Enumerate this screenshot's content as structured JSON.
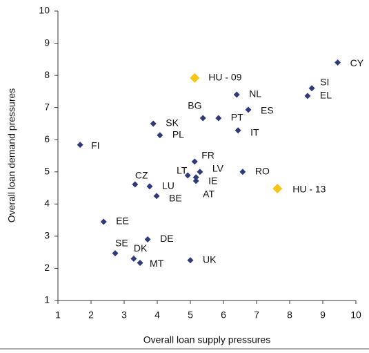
{
  "chart_data": {
    "type": "scatter",
    "x_label": "Overall loan supply pressures",
    "y_label": "Overall loan demand pressures",
    "xlim": [
      1,
      10
    ],
    "xticks": [
      1,
      2,
      3,
      4,
      5,
      6,
      7,
      8,
      9,
      10
    ],
    "ylim": [
      1,
      10
    ],
    "yticks": [
      1,
      2,
      3,
      4,
      5,
      6,
      7,
      8,
      9,
      10
    ],
    "points": [
      {
        "label": "CY",
        "x": 9.45,
        "y": 8.4,
        "color": "#2e3a7a"
      },
      {
        "label": "SI",
        "x": 8.67,
        "y": 7.6,
        "color": "#2e3a7a"
      },
      {
        "label": "EL",
        "x": 8.54,
        "y": 7.36,
        "color": "#2e3a7a"
      },
      {
        "label": "NL",
        "x": 6.4,
        "y": 7.4,
        "color": "#2e3a7a"
      },
      {
        "label": "HU - 09",
        "x": 5.13,
        "y": 7.92,
        "color": "#f5c518"
      },
      {
        "label": "ES",
        "x": 6.75,
        "y": 6.93,
        "color": "#2e3a7a"
      },
      {
        "label": "BG",
        "x": 5.38,
        "y": 6.67,
        "color": "#2e3a7a"
      },
      {
        "label": "PT",
        "x": 5.85,
        "y": 6.67,
        "color": "#2e3a7a"
      },
      {
        "label": "SK",
        "x": 3.88,
        "y": 6.5,
        "color": "#2e3a7a"
      },
      {
        "label": "IT",
        "x": 6.44,
        "y": 6.29,
        "color": "#2e3a7a"
      },
      {
        "label": "PL",
        "x": 4.08,
        "y": 6.14,
        "color": "#2e3a7a"
      },
      {
        "label": "FI",
        "x": 1.67,
        "y": 5.84,
        "color": "#2e3a7a"
      },
      {
        "label": "FR",
        "x": 5.13,
        "y": 5.32,
        "color": "#2e3a7a"
      },
      {
        "label": "LV",
        "x": 5.29,
        "y": 5.0,
        "color": "#2e3a7a"
      },
      {
        "label": "LT",
        "x": 4.92,
        "y": 4.89,
        "color": "#2e3a7a"
      },
      {
        "label": "IE",
        "x": 5.17,
        "y": 4.83,
        "color": "#2e3a7a"
      },
      {
        "label": "AT",
        "x": 5.17,
        "y": 4.72,
        "color": "#2e3a7a"
      },
      {
        "label": "RO",
        "x": 6.58,
        "y": 5.0,
        "color": "#2e3a7a"
      },
      {
        "label": "HU - 13",
        "x": 7.63,
        "y": 4.48,
        "color": "#f5c518"
      },
      {
        "label": "CZ",
        "x": 3.33,
        "y": 4.61,
        "color": "#2e3a7a"
      },
      {
        "label": "LU",
        "x": 3.77,
        "y": 4.55,
        "color": "#2e3a7a"
      },
      {
        "label": "BE",
        "x": 3.98,
        "y": 4.25,
        "color": "#2e3a7a"
      },
      {
        "label": "EE",
        "x": 2.38,
        "y": 3.45,
        "color": "#2e3a7a"
      },
      {
        "label": "DE",
        "x": 3.71,
        "y": 2.9,
        "color": "#2e3a7a"
      },
      {
        "label": "SE",
        "x": 2.73,
        "y": 2.47,
        "color": "#2e3a7a"
      },
      {
        "label": "DK",
        "x": 3.29,
        "y": 2.3,
        "color": "#2e3a7a"
      },
      {
        "label": "MT",
        "x": 3.48,
        "y": 2.17,
        "color": "#2e3a7a"
      },
      {
        "label": "UK",
        "x": 5.0,
        "y": 2.25,
        "color": "#2e3a7a"
      }
    ]
  }
}
